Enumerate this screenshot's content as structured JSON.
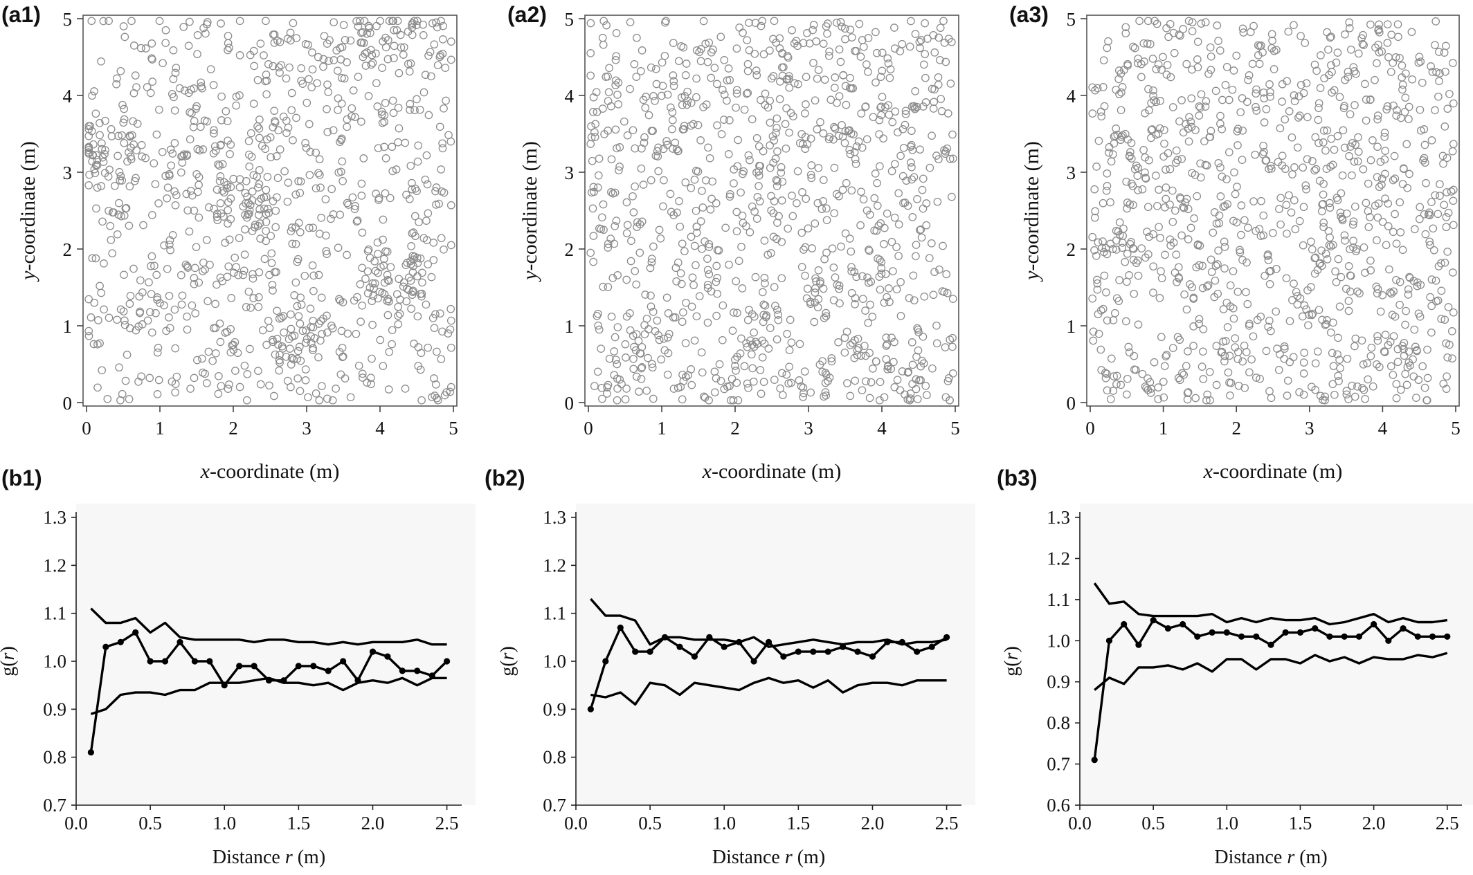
{
  "chart_data": [
    {
      "panel": "(a1)",
      "type": "scatter",
      "xlabel_italic": "x",
      "xlabel_rest": "-coordinate (m)",
      "ylabel_italic": "y",
      "ylabel_rest": "-coordinate (m)",
      "xlim": [
        0,
        5
      ],
      "ylim": [
        0,
        5
      ],
      "xticks": [
        "0",
        "1",
        "2",
        "3",
        "4",
        "5"
      ],
      "yticks": [
        "0",
        "1",
        "2",
        "3",
        "4",
        "5"
      ],
      "n_points": 1000,
      "seed": 11,
      "clusters": [
        [
          0.3,
          3.2
        ],
        [
          1.5,
          3.3
        ],
        [
          2.1,
          2.6
        ],
        [
          4.2,
          1.6
        ],
        [
          2.9,
          0.9
        ],
        [
          4.1,
          4.7
        ]
      ],
      "marker": "hollow-circle",
      "marker_color": "#8c8c8c"
    },
    {
      "panel": "(a2)",
      "type": "scatter",
      "xlabel_italic": "x",
      "xlabel_rest": "-coordinate (m)",
      "ylabel_italic": "y",
      "ylabel_rest": "-coordinate (m)",
      "xlim": [
        0,
        5
      ],
      "ylim": [
        0,
        5
      ],
      "xticks": [
        "0",
        "1",
        "2",
        "3",
        "4",
        "5"
      ],
      "yticks": [
        "0",
        "1",
        "2",
        "3",
        "4",
        "5"
      ],
      "n_points": 1000,
      "seed": 23,
      "clusters": [],
      "marker": "hollow-circle",
      "marker_color": "#8c8c8c"
    },
    {
      "panel": "(a3)",
      "type": "scatter",
      "xlabel_italic": "x",
      "xlabel_rest": "-coordinate (m)",
      "ylabel_italic": "y",
      "ylabel_rest": "-coordinate (m)",
      "xlim": [
        0,
        5
      ],
      "ylim": [
        0,
        5
      ],
      "xticks": [
        "0",
        "1",
        "2",
        "3",
        "4",
        "5"
      ],
      "yticks": [
        "0",
        "1",
        "2",
        "3",
        "4",
        "5"
      ],
      "n_points": 1000,
      "seed": 37,
      "clusters": [],
      "marker": "hollow-circle",
      "marker_color": "#8c8c8c"
    },
    {
      "panel": "(b1)",
      "type": "line",
      "xlabel_prefix": "Distance ",
      "xlabel_italic": "r",
      "xlabel_suffix": " (m)",
      "ylabel_prefix": "g(",
      "ylabel_italic": "r",
      "ylabel_suffix": ")",
      "xlim": [
        0,
        2.6
      ],
      "ylim": [
        0.7,
        1.3
      ],
      "xticks": [
        "0.0",
        "0.5",
        "1.0",
        "1.5",
        "2.0",
        "2.5"
      ],
      "yticks": [
        "0.7",
        "0.8",
        "0.9",
        "1.0",
        "1.1",
        "1.2",
        "1.3"
      ],
      "x": [
        0.1,
        0.2,
        0.3,
        0.4,
        0.5,
        0.6,
        0.7,
        0.8,
        0.9,
        1.0,
        1.1,
        1.2,
        1.3,
        1.4,
        1.5,
        1.6,
        1.7,
        1.8,
        1.9,
        2.0,
        2.1,
        2.2,
        2.3,
        2.4,
        2.5
      ],
      "observed": [
        0.81,
        1.03,
        1.04,
        1.06,
        1.0,
        1.0,
        1.04,
        1.0,
        1.0,
        0.95,
        0.99,
        0.99,
        0.96,
        0.96,
        0.99,
        0.99,
        0.98,
        1.0,
        0.96,
        1.02,
        1.01,
        0.98,
        0.98,
        0.97,
        1.0
      ],
      "upper_envelope": [
        1.11,
        1.08,
        1.08,
        1.09,
        1.06,
        1.08,
        1.05,
        1.045,
        1.045,
        1.045,
        1.045,
        1.04,
        1.045,
        1.045,
        1.04,
        1.04,
        1.035,
        1.04,
        1.035,
        1.04,
        1.04,
        1.04,
        1.045,
        1.035,
        1.035
      ],
      "lower_envelope": [
        0.89,
        0.9,
        0.93,
        0.935,
        0.935,
        0.93,
        0.94,
        0.94,
        0.955,
        0.955,
        0.955,
        0.96,
        0.965,
        0.955,
        0.955,
        0.95,
        0.955,
        0.94,
        0.955,
        0.96,
        0.955,
        0.965,
        0.95,
        0.965,
        0.965
      ]
    },
    {
      "panel": "(b2)",
      "type": "line",
      "xlabel_prefix": "Distance ",
      "xlabel_italic": "r",
      "xlabel_suffix": " (m)",
      "ylabel_prefix": "g(",
      "ylabel_italic": "r",
      "ylabel_suffix": ")",
      "xlim": [
        0,
        2.6
      ],
      "ylim": [
        0.7,
        1.3
      ],
      "xticks": [
        "0.0",
        "0.5",
        "1.0",
        "1.5",
        "2.0",
        "2.5"
      ],
      "yticks": [
        "0.7",
        "0.8",
        "0.9",
        "1.0",
        "1.1",
        "1.2",
        "1.3"
      ],
      "x": [
        0.1,
        0.2,
        0.3,
        0.4,
        0.5,
        0.6,
        0.7,
        0.8,
        0.9,
        1.0,
        1.1,
        1.2,
        1.3,
        1.4,
        1.5,
        1.6,
        1.7,
        1.8,
        1.9,
        2.0,
        2.1,
        2.2,
        2.3,
        2.4,
        2.5
      ],
      "observed": [
        0.9,
        1.0,
        1.07,
        1.02,
        1.02,
        1.05,
        1.03,
        1.01,
        1.05,
        1.03,
        1.04,
        1.0,
        1.04,
        1.01,
        1.02,
        1.02,
        1.02,
        1.03,
        1.02,
        1.01,
        1.04,
        1.04,
        1.02,
        1.03,
        1.05
      ],
      "upper_envelope": [
        1.13,
        1.095,
        1.095,
        1.085,
        1.035,
        1.05,
        1.05,
        1.045,
        1.045,
        1.045,
        1.04,
        1.05,
        1.03,
        1.035,
        1.04,
        1.045,
        1.04,
        1.035,
        1.04,
        1.04,
        1.045,
        1.035,
        1.04,
        1.04,
        1.045
      ],
      "lower_envelope": [
        0.93,
        0.925,
        0.935,
        0.91,
        0.955,
        0.95,
        0.93,
        0.955,
        0.95,
        0.945,
        0.94,
        0.955,
        0.965,
        0.955,
        0.96,
        0.945,
        0.96,
        0.935,
        0.95,
        0.955,
        0.955,
        0.95,
        0.96,
        0.96,
        0.96
      ]
    },
    {
      "panel": "(b3)",
      "type": "line",
      "xlabel_prefix": "Distance ",
      "xlabel_italic": "r",
      "xlabel_suffix": " (m)",
      "ylabel_prefix": "g(",
      "ylabel_italic": "r",
      "ylabel_suffix": ")",
      "xlim": [
        0,
        2.6
      ],
      "ylim": [
        0.6,
        1.3
      ],
      "xticks": [
        "0.0",
        "0.5",
        "1.0",
        "1.5",
        "2.0",
        "2.5"
      ],
      "yticks": [
        "0.6",
        "0.7",
        "0.8",
        "0.9",
        "1.0",
        "1.1",
        "1.2",
        "1.3"
      ],
      "x": [
        0.1,
        0.2,
        0.3,
        0.4,
        0.5,
        0.6,
        0.7,
        0.8,
        0.9,
        1.0,
        1.1,
        1.2,
        1.3,
        1.4,
        1.5,
        1.6,
        1.7,
        1.8,
        1.9,
        2.0,
        2.1,
        2.2,
        2.3,
        2.4,
        2.5
      ],
      "observed": [
        0.71,
        1.0,
        1.04,
        0.99,
        1.05,
        1.03,
        1.04,
        1.01,
        1.02,
        1.02,
        1.01,
        1.01,
        0.99,
        1.02,
        1.02,
        1.03,
        1.01,
        1.01,
        1.01,
        1.04,
        1.0,
        1.03,
        1.01,
        1.01,
        1.01
      ],
      "upper_envelope": [
        1.14,
        1.09,
        1.095,
        1.065,
        1.06,
        1.06,
        1.06,
        1.06,
        1.065,
        1.045,
        1.055,
        1.045,
        1.055,
        1.05,
        1.05,
        1.055,
        1.04,
        1.045,
        1.055,
        1.065,
        1.045,
        1.055,
        1.045,
        1.045,
        1.05
      ],
      "lower_envelope": [
        0.88,
        0.91,
        0.895,
        0.935,
        0.935,
        0.94,
        0.93,
        0.945,
        0.925,
        0.955,
        0.955,
        0.93,
        0.955,
        0.955,
        0.945,
        0.965,
        0.95,
        0.96,
        0.945,
        0.96,
        0.955,
        0.955,
        0.965,
        0.96,
        0.97
      ]
    }
  ]
}
